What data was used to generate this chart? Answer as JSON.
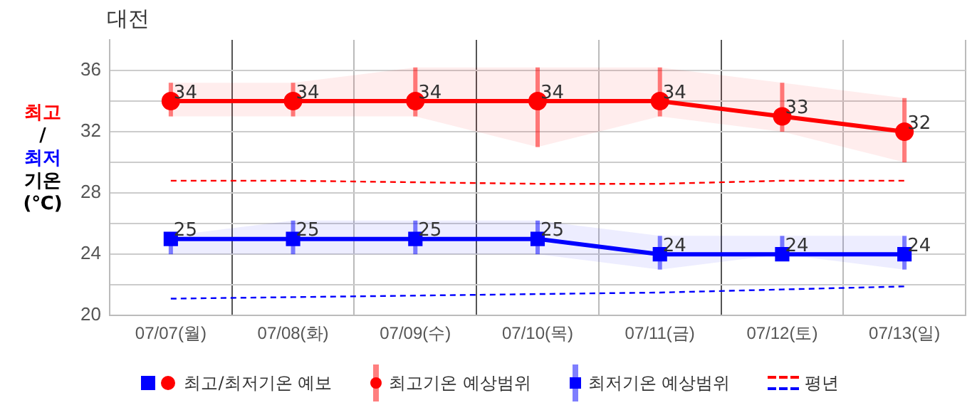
{
  "chart_data": {
    "type": "line",
    "title": "대전",
    "ylabel": "최고/최저 기온 (℃)",
    "categories": [
      "07/07(월)",
      "07/08(화)",
      "07/09(수)",
      "07/10(목)",
      "07/11(금)",
      "07/12(토)",
      "07/13(일)"
    ],
    "ylim": [
      20,
      38
    ],
    "yticks": [
      20,
      {
        "value": 22,
        "label": null
      },
      24,
      {
        "value": 26,
        "label": null
      },
      28,
      {
        "value": 30,
        "label": null
      },
      32,
      {
        "value": 34,
        "label": null
      },
      36
    ],
    "grid": true,
    "legend": "bottom",
    "annotations": [
      "최고기온 예상범위",
      "최저기온 예상범위"
    ],
    "series": [
      {
        "name": "최고/최저기온 예보",
        "color": "#ff0000",
        "marker": "circle",
        "values": [
          34,
          34,
          34,
          34,
          34,
          33,
          32
        ],
        "errors": [
          [
            33,
            35.2
          ],
          [
            33,
            35.2
          ],
          [
            33,
            36.2
          ],
          [
            31,
            36.2
          ],
          [
            33,
            36.2
          ],
          [
            32,
            35.2
          ],
          [
            30,
            34.2
          ]
        ],
        "lower": [
          33,
          33,
          33,
          31,
          33,
          32,
          30
        ],
        "upper": [
          35.2,
          35.2,
          36.2,
          36.2,
          36.2,
          35.2,
          34.2
        ],
        "value_labels": [
          "34",
          "34",
          "34",
          "34",
          "34",
          "33",
          "32"
        ]
      },
      {
        "color": "#0000ff",
        "marker": "square",
        "values": [
          25,
          25,
          25,
          25,
          24,
          24,
          24
        ],
        "errors": [
          [
            24,
            25.2
          ],
          [
            24,
            26.2
          ],
          [
            24,
            26.2
          ],
          [
            24,
            26.2
          ],
          [
            23,
            25.2
          ],
          [
            24,
            25.2
          ],
          [
            23,
            25.2
          ]
        ],
        "lower": [
          24,
          24,
          24,
          24,
          23,
          24,
          23
        ],
        "upper": [
          25.2,
          26.2,
          26.2,
          26.2,
          25.2,
          25.2,
          25.2
        ],
        "value_labels": [
          "25",
          "25",
          "25",
          "25",
          "24",
          "24",
          "24"
        ]
      },
      {
        "name": "평년",
        "color": "#ff0000",
        "marker": "none",
        "line_style": "dashed",
        "values": [
          28.8,
          28.8,
          28.7,
          28.6,
          28.6,
          28.8,
          28.8
        ]
      },
      {
        "color": "#0000ff",
        "marker": "none",
        "line_style": "dashed",
        "values": [
          21.1,
          21.2,
          21.3,
          21.4,
          21.5,
          21.7,
          21.9
        ]
      }
    ]
  }
}
